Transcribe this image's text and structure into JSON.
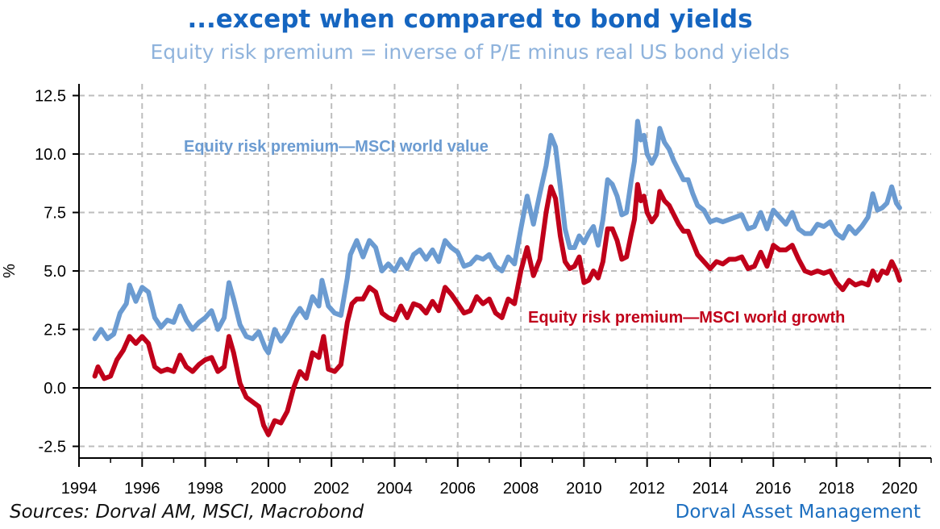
{
  "header": {
    "title": "...except when compared to bond yields",
    "subtitle": "Equity risk premium = inverse of P/E minus real US bond yields"
  },
  "footer": {
    "sources": "Sources: Dorval AM, MSCI, Macrobond",
    "brand": "Dorval Asset Management"
  },
  "colors": {
    "value": "#6b9bd1",
    "growth": "#c0001a",
    "axis": "#000000",
    "grid": "#bdbdbd"
  },
  "chart_data": {
    "type": "line",
    "title": "...except when compared to bond yields",
    "subtitle": "Equity risk premium = inverse of P/E minus real US bond yields",
    "xlabel": "",
    "ylabel": "%",
    "xlim": [
      1994.0,
      2021.0
    ],
    "ylim": [
      -3.0,
      13.0
    ],
    "xticks": [
      1994,
      1996,
      1998,
      2000,
      2002,
      2004,
      2006,
      2008,
      2010,
      2012,
      2014,
      2016,
      2018,
      2020
    ],
    "xtick_labels": [
      "1994",
      "1996",
      "1998",
      "2000",
      "2002",
      "2004",
      "2006",
      "2008",
      "2010",
      "2012",
      "2014",
      "2016",
      "2018",
      "2020"
    ],
    "yticks": [
      -2.5,
      0.0,
      2.5,
      5.0,
      7.5,
      10.0,
      12.5
    ],
    "ytick_labels": [
      "-2.5",
      "0.0",
      "2.5",
      "5.0",
      "7.5",
      "10.0",
      "12.5"
    ],
    "grid": true,
    "series": [
      {
        "name": "Equity risk premium—MSCI world value",
        "color": "#6b9bd1",
        "points": [
          [
            1994.5,
            2.1
          ],
          [
            1994.7,
            2.5
          ],
          [
            1994.9,
            2.1
          ],
          [
            1995.1,
            2.3
          ],
          [
            1995.3,
            3.2
          ],
          [
            1995.5,
            3.6
          ],
          [
            1995.6,
            4.4
          ],
          [
            1995.8,
            3.7
          ],
          [
            1996.0,
            4.3
          ],
          [
            1996.2,
            4.1
          ],
          [
            1996.4,
            3.0
          ],
          [
            1996.6,
            2.6
          ],
          [
            1996.8,
            2.9
          ],
          [
            1997.0,
            2.8
          ],
          [
            1997.2,
            3.5
          ],
          [
            1997.4,
            2.9
          ],
          [
            1997.6,
            2.5
          ],
          [
            1997.8,
            2.8
          ],
          [
            1998.0,
            3.0
          ],
          [
            1998.2,
            3.3
          ],
          [
            1998.4,
            2.5
          ],
          [
            1998.6,
            3.0
          ],
          [
            1998.75,
            4.5
          ],
          [
            1998.9,
            3.8
          ],
          [
            1999.1,
            2.7
          ],
          [
            1999.3,
            2.2
          ],
          [
            1999.5,
            2.1
          ],
          [
            1999.7,
            2.4
          ],
          [
            1999.9,
            1.7
          ],
          [
            2000.0,
            1.5
          ],
          [
            2000.2,
            2.5
          ],
          [
            2000.4,
            2.0
          ],
          [
            2000.6,
            2.4
          ],
          [
            2000.8,
            3.0
          ],
          [
            2001.0,
            3.4
          ],
          [
            2001.2,
            3.0
          ],
          [
            2001.4,
            3.9
          ],
          [
            2001.6,
            3.5
          ],
          [
            2001.7,
            4.6
          ],
          [
            2001.9,
            3.5
          ],
          [
            2002.1,
            3.2
          ],
          [
            2002.3,
            3.1
          ],
          [
            2002.5,
            4.7
          ],
          [
            2002.6,
            5.7
          ],
          [
            2002.8,
            6.3
          ],
          [
            2003.0,
            5.6
          ],
          [
            2003.2,
            6.3
          ],
          [
            2003.4,
            6.0
          ],
          [
            2003.6,
            5.0
          ],
          [
            2003.8,
            5.3
          ],
          [
            2004.0,
            5.0
          ],
          [
            2004.2,
            5.5
          ],
          [
            2004.4,
            5.1
          ],
          [
            2004.6,
            5.7
          ],
          [
            2004.8,
            5.9
          ],
          [
            2005.0,
            5.5
          ],
          [
            2005.2,
            5.9
          ],
          [
            2005.4,
            5.4
          ],
          [
            2005.6,
            6.3
          ],
          [
            2005.8,
            6.0
          ],
          [
            2006.0,
            5.8
          ],
          [
            2006.2,
            5.2
          ],
          [
            2006.4,
            5.3
          ],
          [
            2006.6,
            5.6
          ],
          [
            2006.8,
            5.5
          ],
          [
            2007.0,
            5.7
          ],
          [
            2007.2,
            5.2
          ],
          [
            2007.4,
            5.0
          ],
          [
            2007.6,
            5.6
          ],
          [
            2007.8,
            5.3
          ],
          [
            2008.0,
            6.8
          ],
          [
            2008.2,
            8.2
          ],
          [
            2008.4,
            7.0
          ],
          [
            2008.6,
            8.3
          ],
          [
            2008.8,
            9.5
          ],
          [
            2008.95,
            10.8
          ],
          [
            2009.1,
            10.3
          ],
          [
            2009.25,
            8.6
          ],
          [
            2009.4,
            6.8
          ],
          [
            2009.55,
            6.0
          ],
          [
            2009.7,
            6.0
          ],
          [
            2009.85,
            6.5
          ],
          [
            2010.0,
            6.2
          ],
          [
            2010.15,
            6.6
          ],
          [
            2010.3,
            6.9
          ],
          [
            2010.45,
            6.1
          ],
          [
            2010.6,
            7.2
          ],
          [
            2010.75,
            8.9
          ],
          [
            2010.9,
            8.7
          ],
          [
            2011.05,
            8.2
          ],
          [
            2011.2,
            7.4
          ],
          [
            2011.35,
            7.5
          ],
          [
            2011.5,
            8.9
          ],
          [
            2011.6,
            9.7
          ],
          [
            2011.7,
            11.4
          ],
          [
            2011.8,
            10.6
          ],
          [
            2011.9,
            10.8
          ],
          [
            2012.0,
            10.0
          ],
          [
            2012.15,
            9.6
          ],
          [
            2012.3,
            10.0
          ],
          [
            2012.4,
            11.1
          ],
          [
            2012.55,
            10.5
          ],
          [
            2012.7,
            10.2
          ],
          [
            2012.85,
            9.7
          ],
          [
            2013.0,
            9.3
          ],
          [
            2013.15,
            8.9
          ],
          [
            2013.3,
            8.9
          ],
          [
            2013.45,
            8.3
          ],
          [
            2013.6,
            7.8
          ],
          [
            2013.8,
            7.6
          ],
          [
            2014.0,
            7.1
          ],
          [
            2014.2,
            7.2
          ],
          [
            2014.4,
            7.1
          ],
          [
            2014.6,
            7.2
          ],
          [
            2014.8,
            7.3
          ],
          [
            2015.0,
            7.4
          ],
          [
            2015.2,
            6.8
          ],
          [
            2015.4,
            6.9
          ],
          [
            2015.6,
            7.5
          ],
          [
            2015.8,
            6.8
          ],
          [
            2016.0,
            7.6
          ],
          [
            2016.2,
            7.3
          ],
          [
            2016.4,
            7.0
          ],
          [
            2016.6,
            7.5
          ],
          [
            2016.8,
            6.8
          ],
          [
            2017.0,
            6.6
          ],
          [
            2017.2,
            6.6
          ],
          [
            2017.4,
            7.0
          ],
          [
            2017.6,
            6.9
          ],
          [
            2017.8,
            7.1
          ],
          [
            2018.0,
            6.6
          ],
          [
            2018.2,
            6.4
          ],
          [
            2018.4,
            6.9
          ],
          [
            2018.6,
            6.6
          ],
          [
            2018.8,
            6.9
          ],
          [
            2019.0,
            7.3
          ],
          [
            2019.15,
            8.3
          ],
          [
            2019.3,
            7.6
          ],
          [
            2019.45,
            7.7
          ],
          [
            2019.6,
            7.9
          ],
          [
            2019.75,
            8.6
          ],
          [
            2019.9,
            7.9
          ],
          [
            2020.0,
            7.7
          ]
        ]
      },
      {
        "name": "Equity risk premium—MSCI world growth",
        "color": "#c0001a",
        "points": [
          [
            1994.5,
            0.5
          ],
          [
            1994.6,
            0.9
          ],
          [
            1994.8,
            0.4
          ],
          [
            1995.0,
            0.5
          ],
          [
            1995.2,
            1.2
          ],
          [
            1995.4,
            1.6
          ],
          [
            1995.6,
            2.2
          ],
          [
            1995.8,
            1.9
          ],
          [
            1996.0,
            2.2
          ],
          [
            1996.2,
            1.9
          ],
          [
            1996.4,
            0.9
          ],
          [
            1996.6,
            0.7
          ],
          [
            1996.8,
            0.8
          ],
          [
            1997.0,
            0.7
          ],
          [
            1997.2,
            1.4
          ],
          [
            1997.4,
            0.9
          ],
          [
            1997.6,
            0.7
          ],
          [
            1997.8,
            1.0
          ],
          [
            1998.0,
            1.2
          ],
          [
            1998.2,
            1.3
          ],
          [
            1998.4,
            0.7
          ],
          [
            1998.6,
            0.9
          ],
          [
            1998.75,
            2.2
          ],
          [
            1998.9,
            1.5
          ],
          [
            1999.1,
            0.2
          ],
          [
            1999.3,
            -0.4
          ],
          [
            1999.5,
            -0.6
          ],
          [
            1999.7,
            -0.8
          ],
          [
            1999.85,
            -1.6
          ],
          [
            2000.0,
            -2.0
          ],
          [
            2000.2,
            -1.4
          ],
          [
            2000.4,
            -1.5
          ],
          [
            2000.6,
            -1.0
          ],
          [
            2000.8,
            0.0
          ],
          [
            2001.0,
            0.7
          ],
          [
            2001.2,
            0.4
          ],
          [
            2001.4,
            1.5
          ],
          [
            2001.6,
            1.3
          ],
          [
            2001.75,
            2.2
          ],
          [
            2001.9,
            0.8
          ],
          [
            2002.1,
            0.7
          ],
          [
            2002.3,
            1.0
          ],
          [
            2002.5,
            2.8
          ],
          [
            2002.65,
            3.6
          ],
          [
            2002.8,
            3.8
          ],
          [
            2003.0,
            3.8
          ],
          [
            2003.2,
            4.3
          ],
          [
            2003.4,
            4.1
          ],
          [
            2003.6,
            3.2
          ],
          [
            2003.8,
            3.0
          ],
          [
            2004.0,
            2.9
          ],
          [
            2004.2,
            3.5
          ],
          [
            2004.4,
            3.0
          ],
          [
            2004.6,
            3.6
          ],
          [
            2004.8,
            3.5
          ],
          [
            2005.0,
            3.2
          ],
          [
            2005.2,
            3.7
          ],
          [
            2005.4,
            3.3
          ],
          [
            2005.6,
            4.3
          ],
          [
            2005.8,
            4.0
          ],
          [
            2006.0,
            3.6
          ],
          [
            2006.2,
            3.2
          ],
          [
            2006.4,
            3.3
          ],
          [
            2006.6,
            3.9
          ],
          [
            2006.8,
            3.6
          ],
          [
            2007.0,
            3.8
          ],
          [
            2007.2,
            3.2
          ],
          [
            2007.4,
            3.0
          ],
          [
            2007.6,
            3.8
          ],
          [
            2007.8,
            3.6
          ],
          [
            2008.0,
            5.0
          ],
          [
            2008.2,
            6.0
          ],
          [
            2008.4,
            4.8
          ],
          [
            2008.6,
            5.5
          ],
          [
            2008.8,
            7.5
          ],
          [
            2008.95,
            8.6
          ],
          [
            2009.1,
            8.1
          ],
          [
            2009.25,
            6.5
          ],
          [
            2009.4,
            5.4
          ],
          [
            2009.55,
            5.1
          ],
          [
            2009.7,
            5.2
          ],
          [
            2009.85,
            5.6
          ],
          [
            2010.0,
            4.5
          ],
          [
            2010.15,
            4.6
          ],
          [
            2010.3,
            5.0
          ],
          [
            2010.45,
            4.7
          ],
          [
            2010.6,
            5.4
          ],
          [
            2010.75,
            6.8
          ],
          [
            2010.9,
            6.8
          ],
          [
            2011.05,
            6.3
          ],
          [
            2011.2,
            5.5
          ],
          [
            2011.35,
            5.6
          ],
          [
            2011.5,
            6.6
          ],
          [
            2011.6,
            7.2
          ],
          [
            2011.7,
            8.7
          ],
          [
            2011.8,
            8.0
          ],
          [
            2011.9,
            8.2
          ],
          [
            2012.0,
            7.5
          ],
          [
            2012.15,
            7.1
          ],
          [
            2012.3,
            7.4
          ],
          [
            2012.4,
            8.4
          ],
          [
            2012.55,
            8.0
          ],
          [
            2012.7,
            7.8
          ],
          [
            2012.85,
            7.4
          ],
          [
            2013.0,
            7.0
          ],
          [
            2013.15,
            6.7
          ],
          [
            2013.3,
            6.7
          ],
          [
            2013.45,
            6.2
          ],
          [
            2013.6,
            5.7
          ],
          [
            2013.8,
            5.4
          ],
          [
            2014.0,
            5.1
          ],
          [
            2014.2,
            5.4
          ],
          [
            2014.4,
            5.3
          ],
          [
            2014.6,
            5.5
          ],
          [
            2014.8,
            5.5
          ],
          [
            2015.0,
            5.6
          ],
          [
            2015.2,
            5.1
          ],
          [
            2015.4,
            5.2
          ],
          [
            2015.6,
            5.8
          ],
          [
            2015.8,
            5.2
          ],
          [
            2016.0,
            6.1
          ],
          [
            2016.2,
            5.9
          ],
          [
            2016.4,
            5.9
          ],
          [
            2016.6,
            6.1
          ],
          [
            2016.8,
            5.5
          ],
          [
            2017.0,
            5.0
          ],
          [
            2017.2,
            4.9
          ],
          [
            2017.4,
            5.0
          ],
          [
            2017.6,
            4.9
          ],
          [
            2017.8,
            5.0
          ],
          [
            2018.0,
            4.5
          ],
          [
            2018.2,
            4.2
          ],
          [
            2018.4,
            4.6
          ],
          [
            2018.6,
            4.4
          ],
          [
            2018.8,
            4.5
          ],
          [
            2019.0,
            4.4
          ],
          [
            2019.15,
            5.0
          ],
          [
            2019.3,
            4.6
          ],
          [
            2019.45,
            5.0
          ],
          [
            2019.6,
            4.9
          ],
          [
            2019.75,
            5.4
          ],
          [
            2019.9,
            5.0
          ],
          [
            2020.0,
            4.6
          ]
        ]
      }
    ],
    "annotations": [
      {
        "text": "Equity risk premium—MSCI world value",
        "series": "value"
      },
      {
        "text": "Equity risk premium—MSCI world growth",
        "series": "growth"
      }
    ]
  }
}
